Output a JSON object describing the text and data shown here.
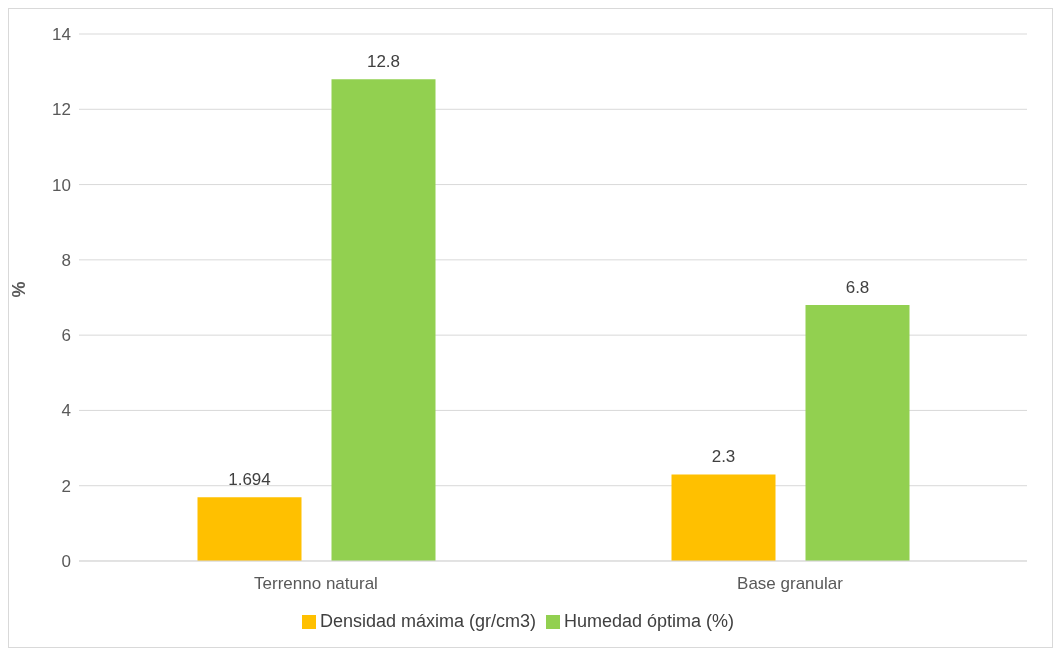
{
  "chart_data": {
    "type": "bar",
    "ylabel": "%",
    "categories": [
      "Terrenno natural",
      "Base granular"
    ],
    "series": [
      {
        "name": "Densidad máxima (gr/cm3)",
        "color": "#ffc000",
        "values": [
          1.694,
          2.3
        ]
      },
      {
        "name": "Humedad óptima (%)",
        "color": "#92d050",
        "values": [
          12.8,
          6.8
        ]
      }
    ],
    "ylim": [
      0,
      14
    ],
    "yticks": [
      0,
      2,
      4,
      6,
      8,
      10,
      12,
      14
    ],
    "grid": "y",
    "legend": "bottom",
    "data_labels": true
  }
}
